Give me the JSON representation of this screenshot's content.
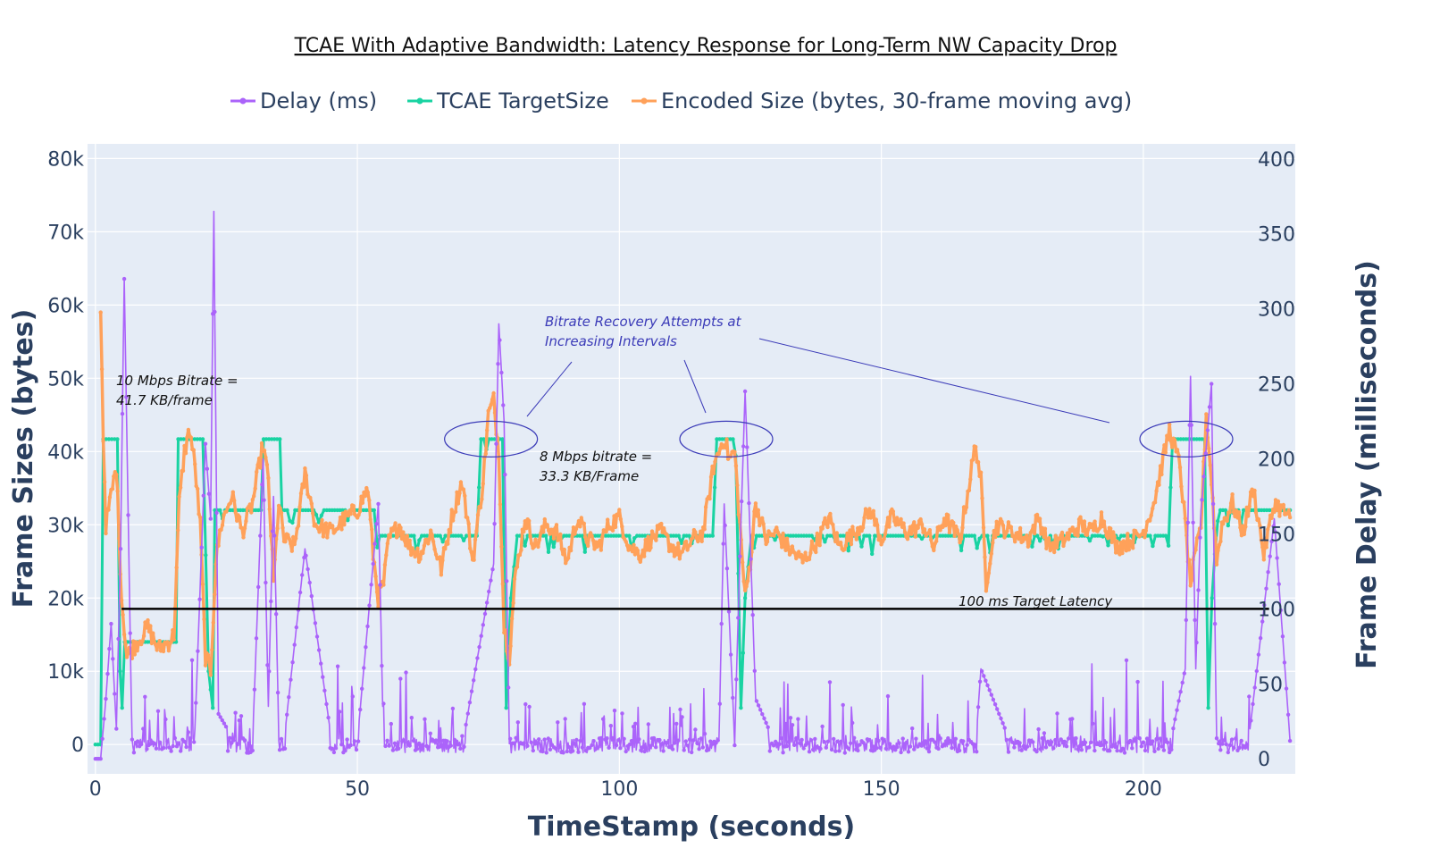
{
  "chart_data": {
    "type": "line",
    "title": "TCAE With Adaptive Bandwidth: Latency Response for Long-Term NW Capacity Drop",
    "xlabel": "TimeStamp (seconds)",
    "ylabel": "Frame Sizes (bytes)",
    "y2label": "Frame Delay (milliseconds)",
    "xlim": [
      -1.5,
      229
    ],
    "ylim": [
      -4000,
      82000
    ],
    "y2lim": [
      -10,
      410
    ],
    "x_ticks": [
      0,
      50,
      100,
      150,
      200
    ],
    "y_ticks": [
      0,
      10000,
      20000,
      30000,
      40000,
      50000,
      60000,
      70000,
      80000
    ],
    "y_tick_labels": [
      "0",
      "10k",
      "20k",
      "30k",
      "40k",
      "50k",
      "60k",
      "70k",
      "80k"
    ],
    "y2_ticks": [
      0,
      50,
      100,
      150,
      200,
      250,
      300,
      350,
      400
    ],
    "grid": true,
    "legend_position": "top",
    "colors": {
      "delay": "#ab63fa",
      "target": "#19d3a2",
      "encoded": "#ffa15a",
      "plot_bg": "#e5ecf6",
      "reference": "#000000",
      "ellipse": "#3b3bb8"
    },
    "series": [
      {
        "name": "Delay (ms)",
        "axis": "y2",
        "x": [
          0,
          1,
          2,
          3,
          4,
          4.8,
          5.5,
          7,
          10,
          15,
          19,
          21,
          22,
          22.6,
          23.5,
          26,
          30,
          32,
          33,
          34,
          35,
          36,
          40,
          45,
          50,
          53,
          54,
          55,
          60,
          70,
          76,
          77,
          78,
          79,
          85,
          92,
          100,
          110,
          119,
          120,
          122,
          123,
          124,
          126,
          130,
          140,
          150,
          160,
          168,
          169,
          175,
          185,
          195,
          205,
          208,
          209,
          210,
          211,
          213,
          214,
          216,
          220,
          224,
          225,
          228
        ],
        "values": [
          0,
          0,
          40,
          90,
          20,
          140,
          320,
          5,
          8,
          10,
          20,
          210,
          160,
          365,
          30,
          15,
          12,
          200,
          35,
          175,
          18,
          12,
          140,
          14,
          12,
          130,
          170,
          8,
          9,
          8,
          130,
          290,
          225,
          12,
          9,
          8,
          9,
          8,
          10,
          170,
          12,
          135,
          245,
          40,
          8,
          9,
          8,
          8,
          9,
          60,
          8,
          8,
          9,
          8,
          60,
          255,
          60,
          165,
          250,
          10,
          8,
          9,
          130,
          160,
          12
        ]
      },
      {
        "name": "TCAE TargetSize",
        "axis": "y",
        "x": [
          0,
          1,
          1.5,
          4.2,
          4.7,
          5.1,
          5.6,
          15.4,
          15.8,
          20.5,
          21.6,
          22.4,
          22.8,
          31.6,
          32.1,
          35.2,
          35.6,
          53.2,
          53.8,
          72.8,
          73.6,
          77.7,
          78.4,
          79.3,
          80.5,
          117.8,
          118.6,
          122.2,
          123.2,
          124.0,
          125.2,
          204.8,
          205.6,
          211.7,
          212.4,
          213.1,
          214.2,
          228
        ],
        "values": [
          0,
          0,
          41700,
          41700,
          10000,
          5000,
          14000,
          14000,
          41700,
          41700,
          10000,
          5000,
          32000,
          32000,
          41700,
          41700,
          32000,
          32000,
          28500,
          28500,
          41700,
          41700,
          5000,
          20000,
          28500,
          28500,
          41700,
          41700,
          5000,
          20000,
          28500,
          28500,
          41700,
          41700,
          5000,
          20000,
          32000,
          32000
        ]
      },
      {
        "name": "Encoded Size (bytes, 30-frame moving avg)",
        "axis": "y",
        "x": [
          1,
          1.5,
          2,
          3,
          4,
          5,
          6,
          8,
          10,
          12,
          14,
          15,
          16,
          17,
          18,
          19,
          20,
          21,
          22,
          23,
          24,
          26,
          28,
          30,
          32,
          33,
          34,
          35,
          36,
          38,
          40,
          42,
          45,
          48,
          50,
          52,
          53,
          54,
          55,
          56,
          58,
          60,
          62,
          64,
          66,
          68,
          70,
          72,
          74,
          75,
          76,
          77,
          78,
          79,
          80,
          82,
          84,
          86,
          88,
          90,
          92,
          94,
          96,
          98,
          100,
          102,
          104,
          106,
          108,
          110,
          112,
          114,
          116,
          118,
          120,
          121,
          122,
          123,
          124,
          125,
          126,
          128,
          130,
          132,
          135,
          138,
          140,
          142,
          145,
          148,
          150,
          152,
          155,
          158,
          160,
          162,
          165,
          168,
          169,
          170,
          171,
          172,
          175,
          178,
          180,
          182,
          185,
          188,
          190,
          192,
          195,
          198,
          200,
          202,
          205,
          207,
          209,
          211,
          212,
          213,
          214,
          215,
          217,
          219,
          221,
          223,
          225,
          228
        ],
        "values": [
          60000,
          42000,
          30000,
          34000,
          38000,
          20000,
          12000,
          14000,
          16000,
          13000,
          14000,
          15000,
          33000,
          40000,
          43000,
          38000,
          30000,
          12000,
          10000,
          25000,
          30000,
          34000,
          29000,
          33000,
          41000,
          36000,
          22000,
          33000,
          28000,
          27000,
          37000,
          30000,
          29000,
          31000,
          32000,
          35000,
          26000,
          20000,
          22000,
          28000,
          30000,
          27000,
          26000,
          29000,
          24000,
          31000,
          36000,
          25000,
          36000,
          45000,
          47000,
          40000,
          16000,
          12000,
          22000,
          31000,
          27000,
          30000,
          29000,
          25000,
          31000,
          28000,
          27000,
          30000,
          31000,
          27000,
          26000,
          28000,
          29000,
          27000,
          26000,
          28000,
          29000,
          38000,
          42000,
          39000,
          40000,
          30000,
          20000,
          25000,
          33000,
          28000,
          29000,
          27000,
          25000,
          28000,
          31000,
          27000,
          29000,
          32000,
          28000,
          31000,
          29000,
          30000,
          27000,
          31000,
          28000,
          41000,
          36000,
          22000,
          27000,
          30000,
          29000,
          28000,
          31000,
          27000,
          28000,
          30000,
          29000,
          31000,
          27000,
          28000,
          29000,
          33000,
          43000,
          38000,
          22000,
          30000,
          45000,
          36000,
          25000,
          30000,
          33000,
          29000,
          35000,
          26000,
          33000,
          31000
        ]
      }
    ],
    "reference_line": {
      "value": 100,
      "axis": "y2",
      "x_range": [
        5,
        224
      ],
      "label": "100 ms Target Latency"
    },
    "annotations": [
      {
        "lines": [
          "10 Mbps Bitrate =",
          "41.7 KB/frame"
        ]
      },
      {
        "lines": [
          "8 Mbps bitrate =",
          "33.3 KB/Frame"
        ]
      },
      {
        "lines": [
          "Bitrate Recovery Attempts at",
          "Increasing Intervals"
        ]
      },
      {
        "lines": [
          "100 ms Target Latency"
        ]
      }
    ],
    "highlights": [
      {
        "x": 75.5,
        "y": 41700
      },
      {
        "x": 120.4,
        "y": 41700
      },
      {
        "x": 208.2,
        "y": 41700
      }
    ]
  }
}
